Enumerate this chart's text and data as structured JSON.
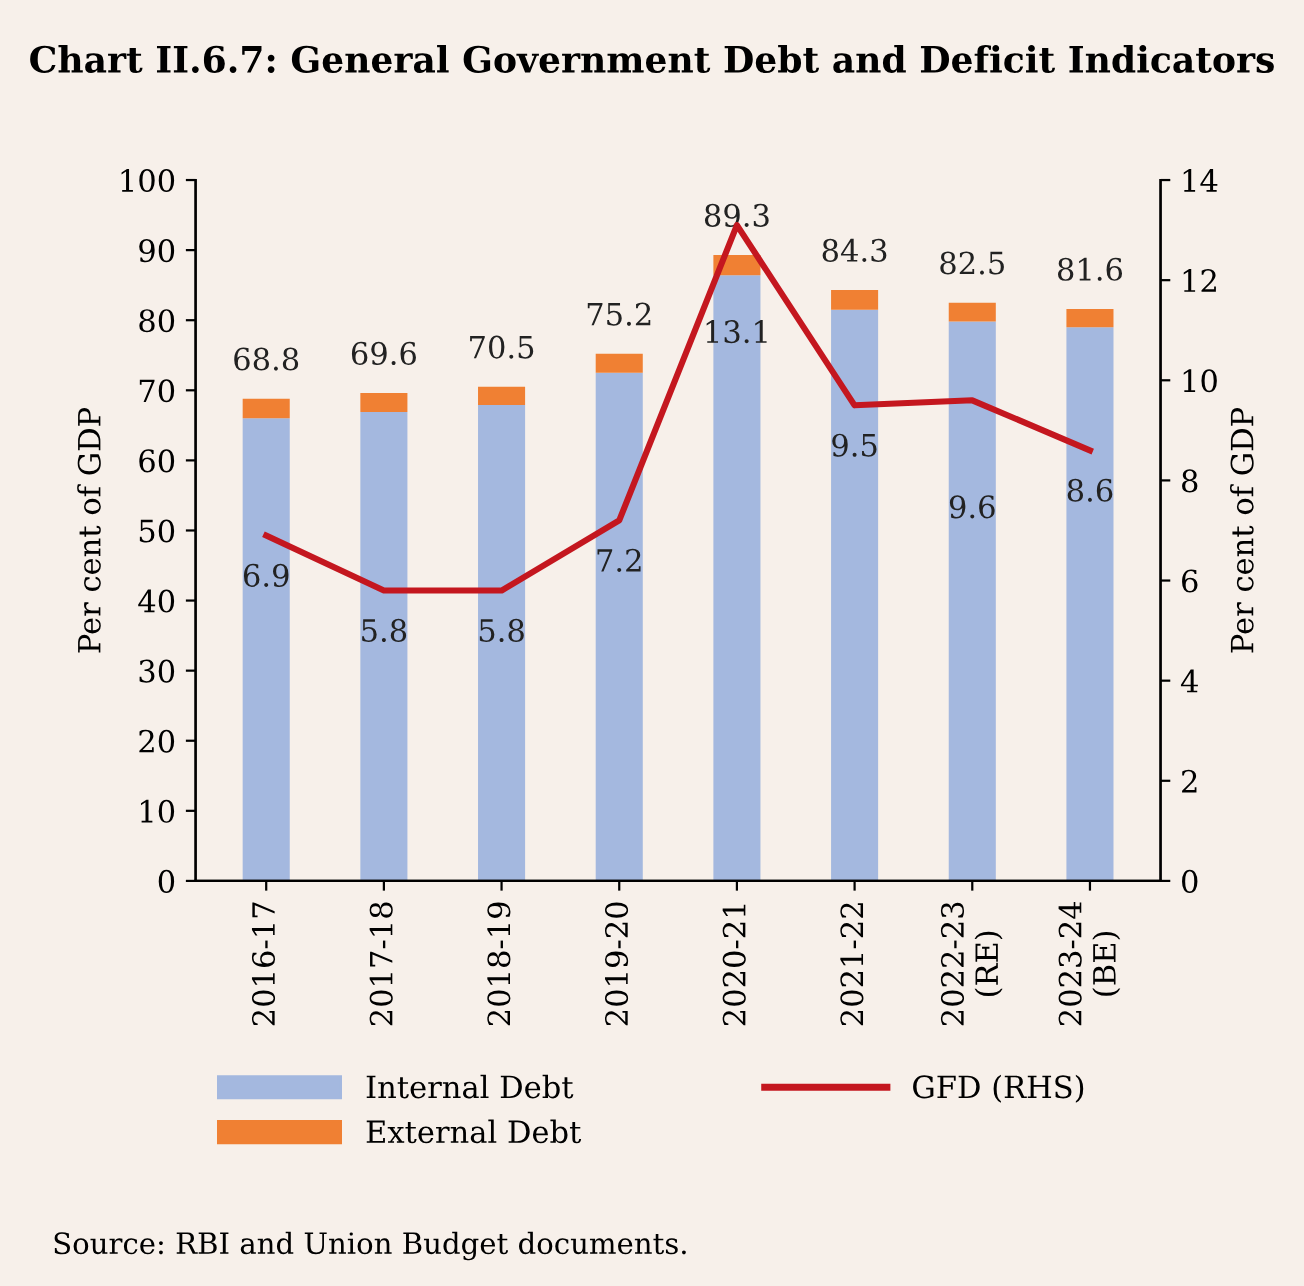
{
  "chart_data": {
    "type": "bar",
    "stacked": true,
    "title": "Chart II.6.7: General Government Debt and Deficit Indicators",
    "ylabel": "Per cent of GDP",
    "y2label": "Per cent of GDP",
    "categories": [
      "2016-17",
      "2017-18",
      "2018-19",
      "2019-20",
      "2020-21",
      "2021-22",
      "2022-23\n(RE)",
      "2023-24\n(BE)"
    ],
    "series": [
      {
        "name": "Internal Debt",
        "color": "#a4b8df",
        "values": [
          66.0,
          66.9,
          67.9,
          72.5,
          86.4,
          81.5,
          79.8,
          79.0
        ]
      },
      {
        "name": "External Debt",
        "color": "#f08033",
        "values": [
          2.8,
          2.7,
          2.6,
          2.7,
          2.9,
          2.8,
          2.7,
          2.6
        ]
      },
      {
        "name": "GFD (RHS)",
        "type": "line",
        "axis": "y2",
        "color": "#c4171f",
        "values": [
          6.9,
          5.8,
          5.8,
          7.2,
          13.1,
          9.5,
          9.6,
          8.6
        ],
        "value_labels": [
          "6.9",
          "5.8",
          "5.8",
          "7.2",
          "13.1",
          "9.5",
          "9.6",
          "8.6"
        ]
      }
    ],
    "totals": [
      "68.8",
      "69.6",
      "70.5",
      "75.2",
      "89.3",
      "84.3",
      "82.5",
      "81.6"
    ],
    "ylim": [
      0,
      100
    ],
    "yticks": [
      0,
      10,
      20,
      30,
      40,
      50,
      60,
      70,
      80,
      90,
      100
    ],
    "y2lim": [
      0,
      14
    ],
    "y2ticks": [
      0,
      2,
      4,
      6,
      8,
      10,
      12,
      14
    ],
    "grid": false,
    "legend": "bottom",
    "marker": "none",
    "line_style": "solid",
    "annotations": [
      "Source: RBI and Union Budget documents."
    ]
  }
}
